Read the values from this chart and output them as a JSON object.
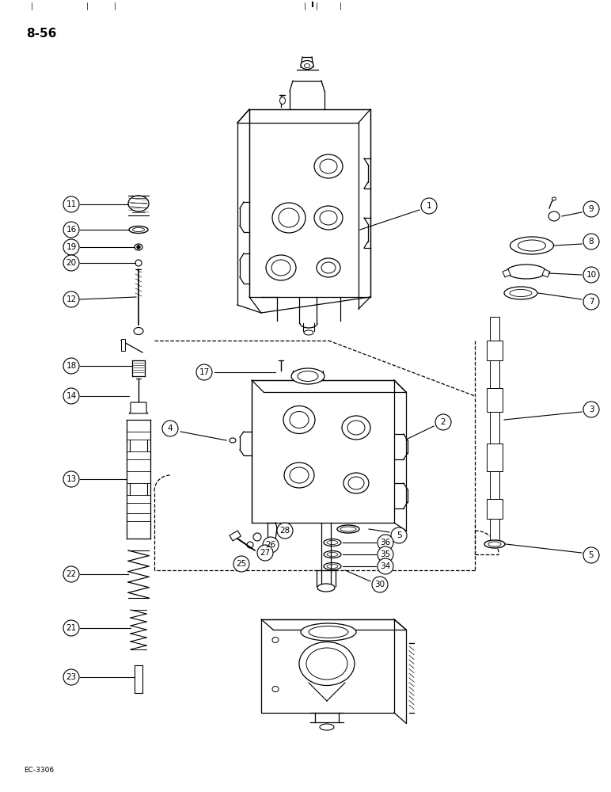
{
  "title": "8-56",
  "footer": "EC-3306",
  "bg": "#ffffff",
  "lc": "black",
  "lw": 0.9,
  "label_fs": 7.5,
  "title_fs": 11
}
